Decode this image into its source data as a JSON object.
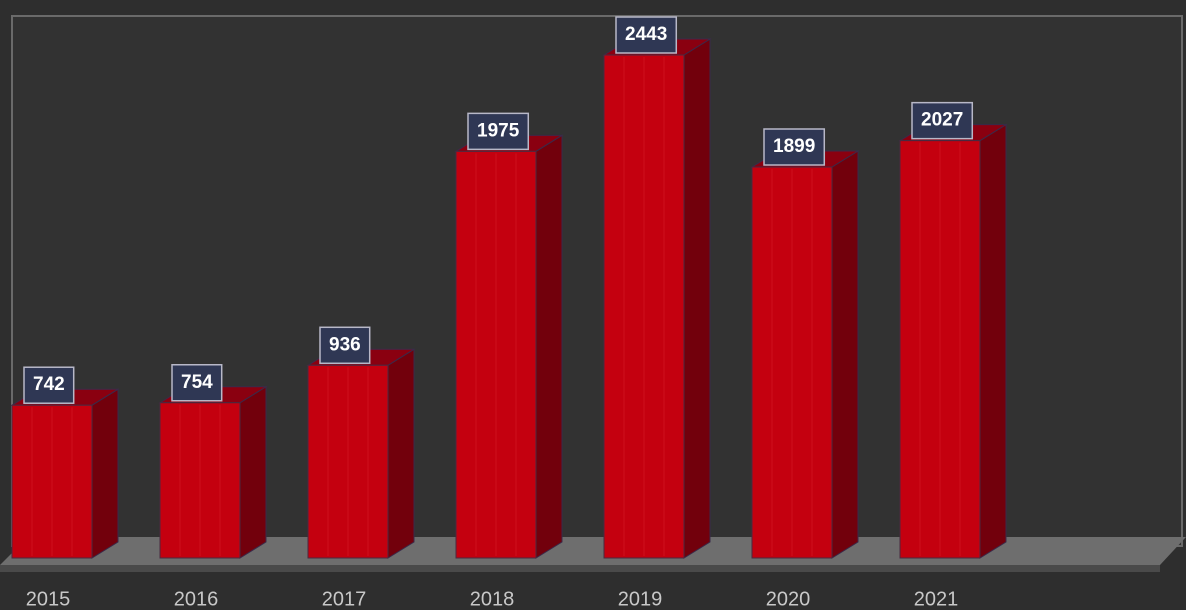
{
  "chart_data": {
    "type": "bar3d",
    "categories": [
      "2015",
      "2016",
      "2017",
      "2018",
      "2019",
      "2020",
      "2021"
    ],
    "values": [
      742,
      754,
      936,
      1975,
      2443,
      1899,
      2027
    ],
    "color": "#c4000f"
  }
}
